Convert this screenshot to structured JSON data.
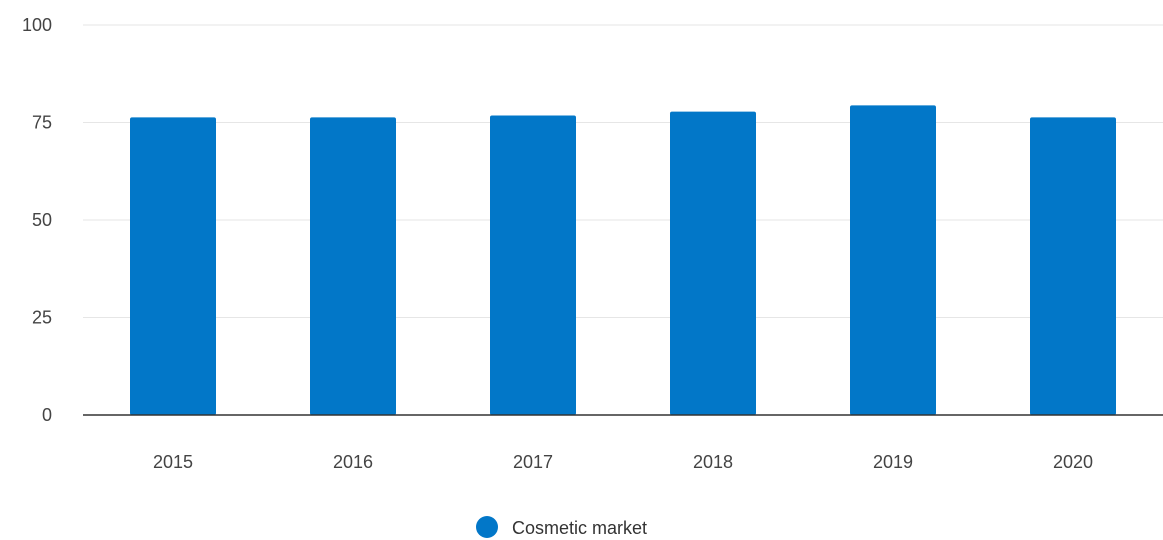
{
  "chart_data": {
    "type": "bar",
    "categories": [
      "2015",
      "2016",
      "2017",
      "2018",
      "2019",
      "2020"
    ],
    "series": [
      {
        "name": "Cosmetic market",
        "values": [
          76.3,
          76.3,
          76.8,
          77.8,
          79.4,
          76.3
        ],
        "color": "#0277c8"
      }
    ],
    "ylim": [
      0,
      100
    ],
    "yticks": [
      0,
      25,
      50,
      75,
      100
    ],
    "ytick_labels": [
      "0",
      "25",
      "50",
      "75",
      "100"
    ],
    "grid": true,
    "legend_position": "bottom-center",
    "title": "",
    "xlabel": "",
    "ylabel": ""
  },
  "colors": {
    "bar": "#0277c8",
    "gridline": "#e6e6e6",
    "baseline": "#333333"
  },
  "legend": {
    "label": "Cosmetic market"
  }
}
